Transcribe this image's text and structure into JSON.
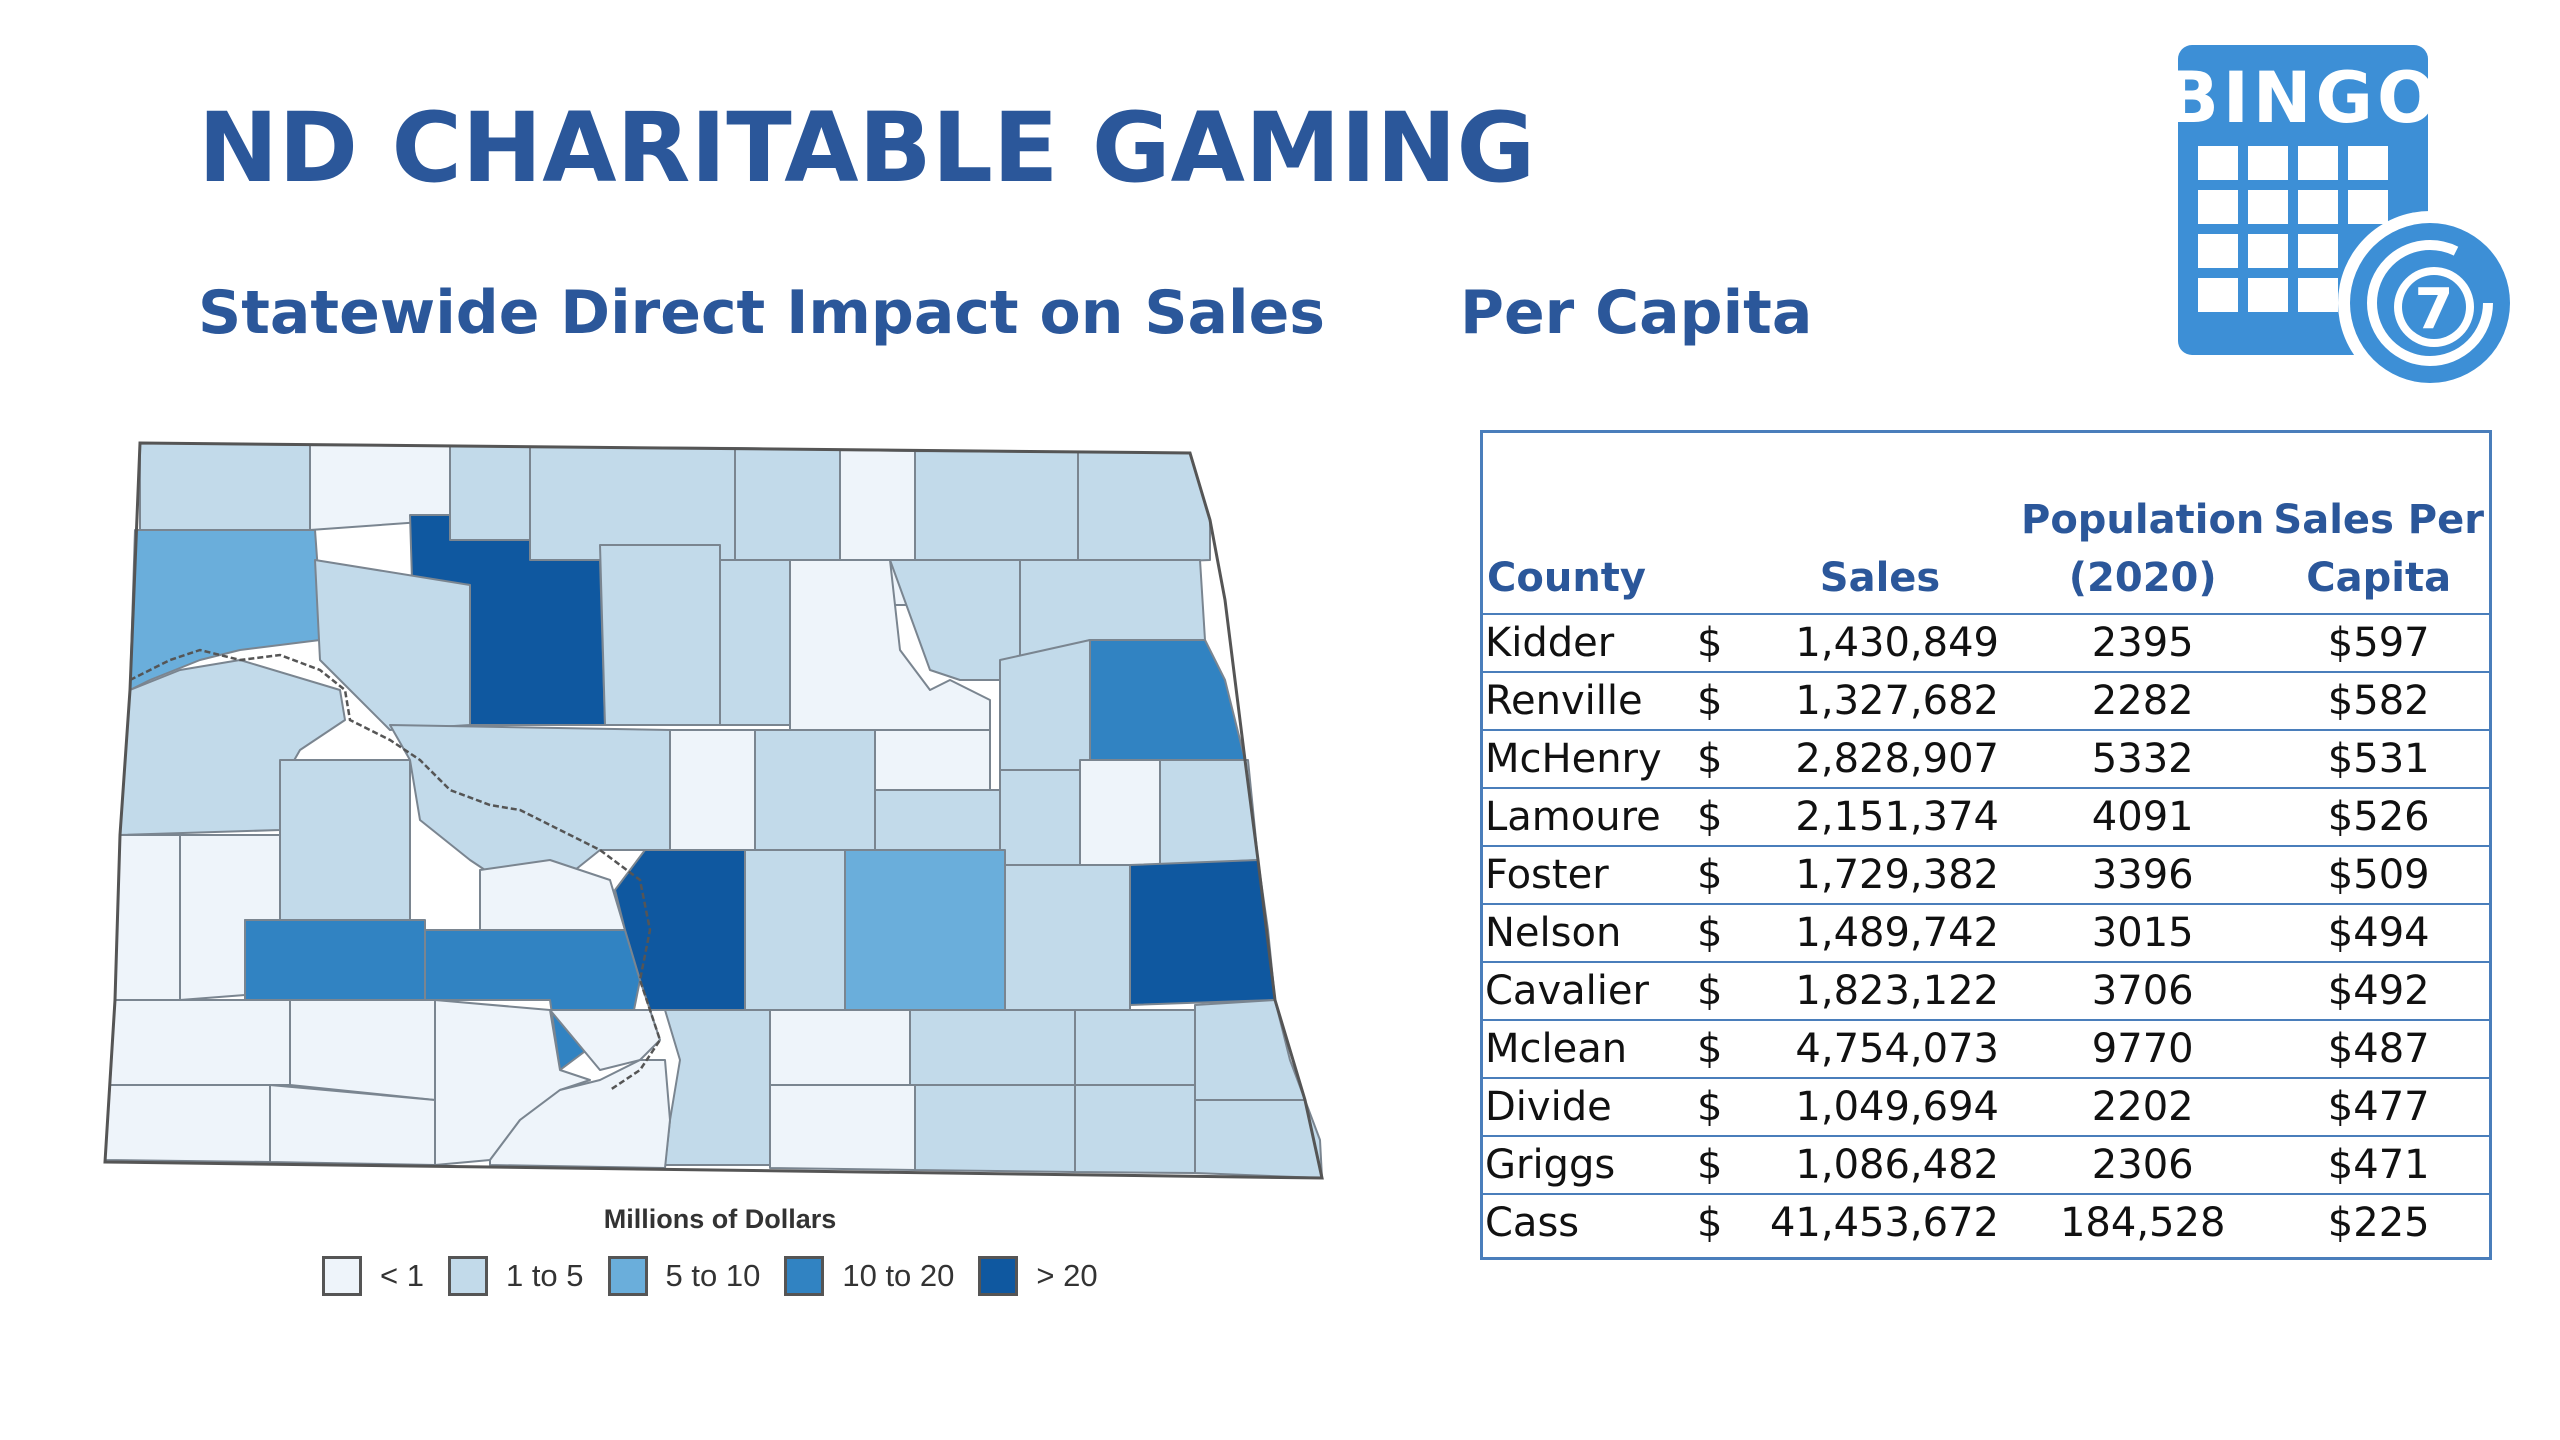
{
  "page": {
    "title": "ND CHARITABLE GAMING",
    "subtitle_left": "Statewide Direct Impact on Sales",
    "subtitle_right": "Per Capita"
  },
  "bingo_icon": {
    "name": "bingo-card-icon",
    "label": "BINGO",
    "ball_number": "7",
    "color": "#3d8fd6"
  },
  "map": {
    "state": "North Dakota",
    "legend_title": "Millions of Dollars",
    "legend": [
      {
        "label": "< 1",
        "color": "#eef4fa"
      },
      {
        "label": "1 to 5",
        "color": "#c2daea"
      },
      {
        "label": "5 to 10",
        "color": "#6aaedb"
      },
      {
        "label": "10 to 20",
        "color": "#3183c2"
      },
      {
        "label": "> 20",
        "color": "#0f58a0"
      }
    ]
  },
  "table": {
    "headers": {
      "county": "County",
      "sales": "Sales",
      "population_line1": "Population",
      "population_line2": "(2020)",
      "spc_line1": "Sales Per",
      "spc_line2": "Capita"
    },
    "rows": [
      {
        "county": "Kidder",
        "dollar": "$",
        "sales": "1,430,849",
        "population": "2395",
        "per_capita": "$597"
      },
      {
        "county": "Renville",
        "dollar": "$",
        "sales": "1,327,682",
        "population": "2282",
        "per_capita": "$582"
      },
      {
        "county": "McHenry",
        "dollar": "$",
        "sales": "2,828,907",
        "population": "5332",
        "per_capita": "$531"
      },
      {
        "county": "Lamoure",
        "dollar": "$",
        "sales": "2,151,374",
        "population": "4091",
        "per_capita": "$526"
      },
      {
        "county": "Foster",
        "dollar": "$",
        "sales": "1,729,382",
        "population": "3396",
        "per_capita": "$509"
      },
      {
        "county": "Nelson",
        "dollar": "$",
        "sales": "1,489,742",
        "population": "3015",
        "per_capita": "$494"
      },
      {
        "county": "Cavalier",
        "dollar": "$",
        "sales": "1,823,122",
        "population": "3706",
        "per_capita": "$492"
      },
      {
        "county": "Mclean",
        "dollar": "$",
        "sales": "4,754,073",
        "population": "9770",
        "per_capita": "$487"
      },
      {
        "county": "Divide",
        "dollar": "$",
        "sales": "1,049,694",
        "population": "2202",
        "per_capita": "$477"
      },
      {
        "county": "Griggs",
        "dollar": "$",
        "sales": "1,086,482",
        "population": "2306",
        "per_capita": "$471"
      },
      {
        "county": "Cass",
        "dollar": "$",
        "sales": "41,453,672",
        "population": "184,528",
        "per_capita": "$225"
      }
    ]
  }
}
